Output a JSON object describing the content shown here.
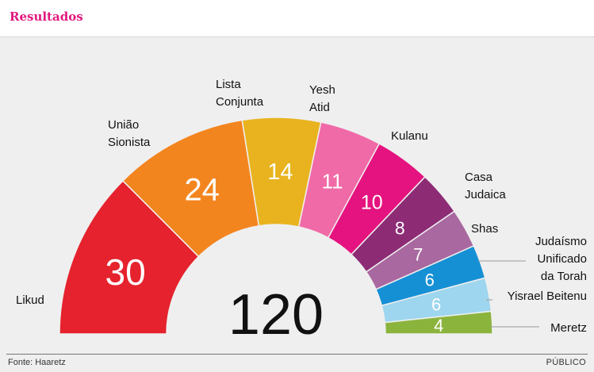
{
  "header": {
    "title": "Resultados"
  },
  "footer": {
    "source": "Fonte: Haaretz",
    "brand": "PÚBLICO"
  },
  "chart_data": {
    "type": "pie",
    "subtype": "semicircle parliament",
    "total": 120,
    "series": [
      {
        "name": "Likud",
        "label_lines": [
          "Likud"
        ],
        "value": 30,
        "color": "#e5222d"
      },
      {
        "name": "União Sionista",
        "label_lines": [
          "União",
          "Sionista"
        ],
        "value": 24,
        "color": "#f3851f"
      },
      {
        "name": "Lista Conjunta",
        "label_lines": [
          "Lista",
          "Conjunta"
        ],
        "value": 14,
        "color": "#e8b31e"
      },
      {
        "name": "Yesh Atid",
        "label_lines": [
          "Yesh",
          "Atid"
        ],
        "value": 11,
        "color": "#f06aa7"
      },
      {
        "name": "Kulanu",
        "label_lines": [
          "Kulanu"
        ],
        "value": 10,
        "color": "#e5137f"
      },
      {
        "name": "Casa Judaica",
        "label_lines": [
          "Casa",
          "Judaica"
        ],
        "value": 8,
        "color": "#8d2b75"
      },
      {
        "name": "Shas",
        "label_lines": [
          "Shas"
        ],
        "value": 7,
        "color": "#a9689f"
      },
      {
        "name": "Judaísmo Unificado da Torah",
        "label_lines": [
          "Judaísmo",
          "Unificado",
          "da Torah"
        ],
        "value": 6,
        "color": "#1690d5"
      },
      {
        "name": "Yisrael Beitenu",
        "label_lines": [
          "Yisrael Beitenu"
        ],
        "value": 6,
        "color": "#9dd6ee"
      },
      {
        "name": "Meretz",
        "label_lines": [
          "Meretz"
        ],
        "value": 4,
        "color": "#8bb43d"
      }
    ]
  }
}
